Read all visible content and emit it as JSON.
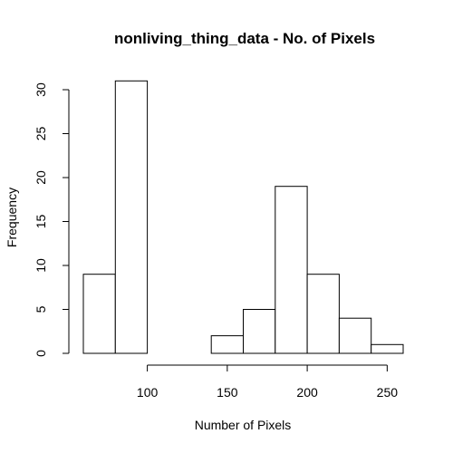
{
  "chart_data": {
    "type": "bar",
    "title": "nonliving_thing_data - No. of Pixels",
    "xlabel": "Number of Pixels",
    "ylabel": "Frequency",
    "bins": [
      {
        "start": 60,
        "end": 80,
        "count": 9
      },
      {
        "start": 80,
        "end": 100,
        "count": 31
      },
      {
        "start": 100,
        "end": 120,
        "count": 0
      },
      {
        "start": 120,
        "end": 140,
        "count": 0
      },
      {
        "start": 140,
        "end": 160,
        "count": 2
      },
      {
        "start": 160,
        "end": 180,
        "count": 5
      },
      {
        "start": 180,
        "end": 200,
        "count": 19
      },
      {
        "start": 200,
        "end": 220,
        "count": 9
      },
      {
        "start": 220,
        "end": 240,
        "count": 4
      },
      {
        "start": 240,
        "end": 260,
        "count": 1
      }
    ],
    "xticks": [
      100,
      150,
      200,
      250
    ],
    "yticks": [
      0,
      5,
      10,
      15,
      20,
      25,
      30
    ],
    "xlim": [
      60,
      260
    ],
    "ylim": [
      0,
      32
    ],
    "grid": false,
    "legend": "none"
  }
}
